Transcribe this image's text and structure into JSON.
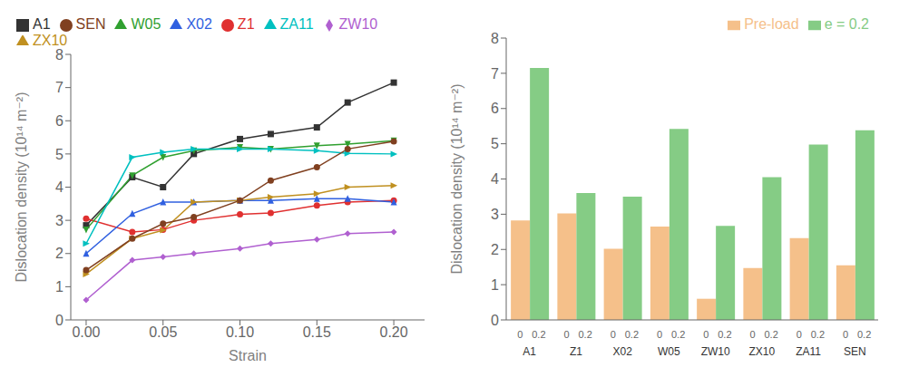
{
  "chart_data": [
    {
      "type": "line",
      "x": [
        0.0,
        0.03,
        0.05,
        0.07,
        0.1,
        0.12,
        0.15,
        0.17,
        0.2
      ],
      "series": [
        {
          "name": "A1",
          "color": "#333333",
          "marker": "square",
          "values": [
            2.85,
            4.3,
            4.0,
            5.0,
            5.45,
            5.6,
            5.8,
            6.55,
            7.15
          ]
        },
        {
          "name": "Z1",
          "color": "#e03030",
          "marker": "circle",
          "values": [
            3.05,
            2.65,
            2.72,
            3.0,
            3.18,
            3.22,
            3.45,
            3.55,
            3.6
          ]
        },
        {
          "name": "X02",
          "color": "#3060e0",
          "marker": "triangle_up",
          "values": [
            2.0,
            3.2,
            3.55,
            3.55,
            3.6,
            3.6,
            3.65,
            3.65,
            3.55
          ]
        },
        {
          "name": "W05",
          "color": "#30a030",
          "marker": "triangle_down",
          "values": [
            2.72,
            4.35,
            4.9,
            5.1,
            5.2,
            5.15,
            5.25,
            5.3,
            5.4
          ]
        },
        {
          "name": "ZW10",
          "color": "#b060d0",
          "marker": "diamond",
          "values": [
            0.6,
            1.8,
            1.9,
            2.0,
            2.15,
            2.3,
            2.42,
            2.6,
            2.65
          ]
        },
        {
          "name": "ZX10",
          "color": "#c09020",
          "marker": "triangle_right",
          "values": [
            1.38,
            2.45,
            2.7,
            3.55,
            3.6,
            3.7,
            3.8,
            4.0,
            4.05
          ]
        },
        {
          "name": "ZA11",
          "color": "#00c0c0",
          "marker": "triangle_right",
          "values": [
            2.3,
            4.9,
            5.05,
            5.15,
            5.15,
            5.15,
            5.1,
            5.02,
            5.0
          ]
        },
        {
          "name": "SEN",
          "color": "#804020",
          "marker": "circle",
          "values": [
            1.5,
            2.45,
            2.9,
            3.1,
            3.6,
            4.2,
            4.6,
            5.15,
            5.38
          ]
        }
      ],
      "xlabel": "Strain",
      "ylabel": "Dislocation density (10¹⁴ m⁻²)",
      "xlim": [
        -0.01,
        0.22
      ],
      "ylim": [
        0,
        8
      ],
      "xticks": [
        {
          "value": 0,
          "label": "0.00"
        },
        {
          "value": 0.05,
          "label": "0.05"
        },
        {
          "value": 0.1,
          "label": "0.10"
        },
        {
          "value": 0.15,
          "label": "0.15"
        },
        {
          "value": 0.2,
          "label": "0.20"
        }
      ],
      "yticks": [
        0,
        1,
        2,
        3,
        4,
        5,
        6,
        7,
        8
      ],
      "grid": false,
      "legend": "upper left"
    },
    {
      "type": "bar",
      "categories": [
        "A1",
        "Z1",
        "X02",
        "W05",
        "ZW10",
        "ZX10",
        "ZA11",
        "SEN"
      ],
      "subcategories": [
        "0",
        "0.2"
      ],
      "series": [
        {
          "name": "Pre-load",
          "color": "#f5c08a",
          "values": [
            2.82,
            3.02,
            2.02,
            2.65,
            0.6,
            1.47,
            2.32,
            1.55
          ]
        },
        {
          "name": "e = 0.2",
          "color": "#85cc85",
          "values": [
            7.15,
            3.6,
            3.5,
            5.42,
            2.67,
            4.05,
            4.98,
            5.38
          ]
        }
      ],
      "ylabel": "Dislocation density (10¹⁴ m⁻²)",
      "ylim": [
        0,
        8
      ],
      "yticks": [
        0,
        1,
        2,
        3,
        4,
        5,
        6,
        7,
        8
      ],
      "grid": false,
      "legend": "upper right"
    }
  ]
}
